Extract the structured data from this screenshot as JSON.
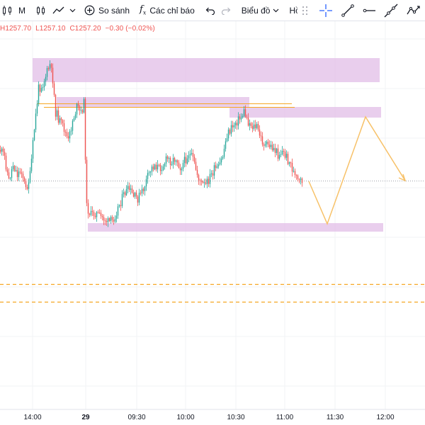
{
  "toolbar": {
    "interval": "M",
    "compare_label": "So sánh",
    "indicators_label": "Các chỉ báo",
    "chart_menu_label": "Biểu đồ",
    "profile_menu_label": "Hồ sơ",
    "icons": [
      "candles-icon",
      "line-chart-icon",
      "chevron-down-icon",
      "plus-circle-icon",
      "fx-icon",
      "undo-icon",
      "redo-icon"
    ]
  },
  "drawing_tools": [
    "dotted-grid-icon",
    "crosshair-icon",
    "trend-line-icon",
    "horizontal-ray-icon",
    "extended-line-icon",
    "path-icon"
  ],
  "legend": {
    "high": "H1257.70",
    "low": "L1257.10",
    "close": "C1257.20",
    "change": "−0.30 (−0.02%)"
  },
  "colors": {
    "up": "#26a69a",
    "down": "#ef5350",
    "zone": "#e1bee7",
    "projection": "#f7c168",
    "dashed_levels": "#f5a623",
    "legend_text": "#ef5350"
  },
  "chart_data": {
    "type": "candlestick",
    "x_ticks": [
      "14:00",
      "29",
      "09:30",
      "10:00",
      "10:30",
      "11:00",
      "11:30",
      "12:00"
    ],
    "projection_path": [
      [
        "10:48",
        1257.2
      ],
      [
        "11:02",
        1252.5
      ],
      [
        "11:32",
        1262.5
      ],
      [
        "11:58",
        1257.2
      ]
    ],
    "zones": [
      "resistance-zone-top",
      "resistance-zone-mid",
      "resistance-zone-right",
      "support-zone-bottom"
    ],
    "dashed_levels": 2,
    "current_price_line": 1257.2
  }
}
